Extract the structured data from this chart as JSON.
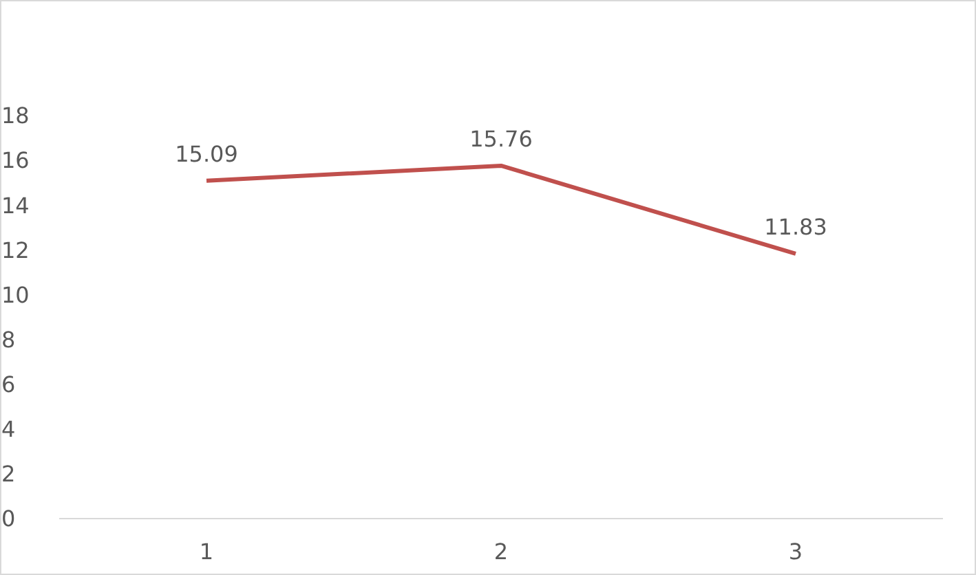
{
  "chart_data": {
    "type": "line",
    "categories": [
      "1",
      "2",
      "3"
    ],
    "series": [
      {
        "color": "#c0504d",
        "values": [
          15.09,
          15.76,
          11.83
        ]
      }
    ],
    "ylim": [
      0,
      18
    ],
    "yticks": [
      0,
      2,
      4,
      6,
      8,
      10,
      12,
      14,
      16,
      18
    ],
    "grid": false,
    "legend": false,
    "marker": "none",
    "line_style": "solid",
    "data_labels": true
  }
}
